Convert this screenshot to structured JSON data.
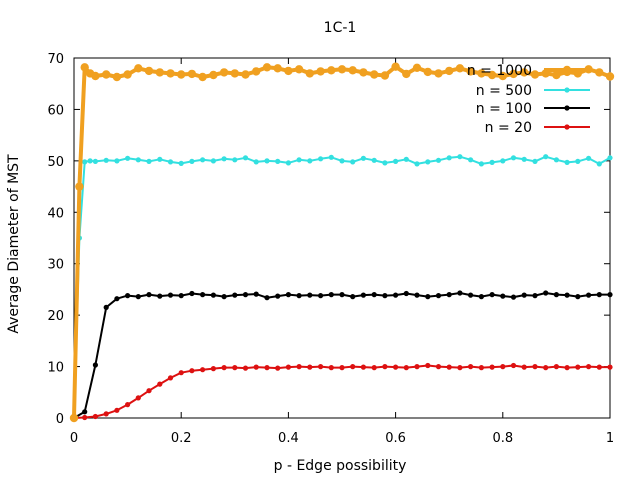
{
  "chart_data": {
    "type": "line",
    "title": "1C-1",
    "xlabel": "p - Edge possibility",
    "ylabel": "Average Diameter of MST",
    "xlim": [
      0,
      1
    ],
    "ylim": [
      0,
      70
    ],
    "x_ticks": [
      0,
      0.2,
      0.4,
      0.6,
      0.8,
      1
    ],
    "x_tick_labels": [
      "0",
      "0.2",
      "0.4",
      "0.6",
      "0.8",
      "1"
    ],
    "y_ticks": [
      0,
      10,
      20,
      30,
      40,
      50,
      60,
      70
    ],
    "y_tick_labels": [
      "0",
      "10",
      "20",
      "30",
      "40",
      "50",
      "60",
      "70"
    ],
    "grid": false,
    "legend_position": "top-right",
    "series": [
      {
        "name": "n = 1000",
        "color": "#f0a020",
        "x": [
          0,
          0.01,
          0.02,
          0.03,
          0.04,
          0.06,
          0.08,
          0.1,
          0.12,
          0.14,
          0.16,
          0.18,
          0.2,
          0.22,
          0.24,
          0.26,
          0.28,
          0.3,
          0.32,
          0.34,
          0.36,
          0.38,
          0.4,
          0.42,
          0.44,
          0.46,
          0.48,
          0.5,
          0.52,
          0.54,
          0.56,
          0.58,
          0.6,
          0.62,
          0.64,
          0.66,
          0.68,
          0.7,
          0.72,
          0.74,
          0.76,
          0.78,
          0.8,
          0.82,
          0.84,
          0.86,
          0.88,
          0.9,
          0.92,
          0.94,
          0.96,
          0.98,
          1.0
        ],
        "y": [
          0,
          45,
          68.2,
          67.0,
          66.5,
          66.8,
          66.3,
          66.8,
          68.0,
          67.5,
          67.2,
          67.0,
          66.8,
          66.9,
          66.3,
          66.7,
          67.2,
          67.0,
          66.8,
          67.4,
          68.2,
          68.0,
          67.5,
          67.8,
          67.0,
          67.4,
          67.6,
          67.8,
          67.6,
          67.2,
          66.8,
          66.6,
          68.3,
          66.9,
          68.1,
          67.3,
          67.0,
          67.5,
          68.0,
          67.4,
          67.0,
          66.7,
          66.5,
          66.9,
          67.2,
          66.8,
          67.0,
          66.7,
          67.3,
          67.0,
          67.8,
          67.2,
          66.4
        ]
      },
      {
        "name": "n = 500",
        "color": "#33e0e0",
        "x": [
          0,
          0.01,
          0.02,
          0.03,
          0.04,
          0.06,
          0.08,
          0.1,
          0.12,
          0.14,
          0.16,
          0.18,
          0.2,
          0.22,
          0.24,
          0.26,
          0.28,
          0.3,
          0.32,
          0.34,
          0.36,
          0.38,
          0.4,
          0.42,
          0.44,
          0.46,
          0.48,
          0.5,
          0.52,
          0.54,
          0.56,
          0.58,
          0.6,
          0.62,
          0.64,
          0.66,
          0.68,
          0.7,
          0.72,
          0.74,
          0.76,
          0.78,
          0.8,
          0.82,
          0.84,
          0.86,
          0.88,
          0.9,
          0.92,
          0.94,
          0.96,
          0.98,
          1.0
        ],
        "y": [
          0,
          35,
          49.8,
          50.0,
          49.9,
          50.1,
          50.0,
          50.5,
          50.2,
          49.9,
          50.3,
          49.8,
          49.5,
          49.9,
          50.2,
          50.0,
          50.4,
          50.2,
          50.6,
          49.8,
          50.0,
          49.9,
          49.6,
          50.2,
          50.0,
          50.4,
          50.7,
          50.0,
          49.8,
          50.5,
          50.1,
          49.6,
          49.9,
          50.3,
          49.4,
          49.8,
          50.1,
          50.6,
          50.8,
          50.2,
          49.4,
          49.7,
          50.0,
          50.6,
          50.3,
          49.9,
          50.8,
          50.2,
          49.7,
          49.9,
          50.5,
          49.4,
          50.6
        ]
      },
      {
        "name": "n = 100",
        "color": "#000000",
        "x": [
          0,
          0.02,
          0.04,
          0.06,
          0.08,
          0.1,
          0.12,
          0.14,
          0.16,
          0.18,
          0.2,
          0.22,
          0.24,
          0.26,
          0.28,
          0.3,
          0.32,
          0.34,
          0.36,
          0.38,
          0.4,
          0.42,
          0.44,
          0.46,
          0.48,
          0.5,
          0.52,
          0.54,
          0.56,
          0.58,
          0.6,
          0.62,
          0.64,
          0.66,
          0.68,
          0.7,
          0.72,
          0.74,
          0.76,
          0.78,
          0.8,
          0.82,
          0.84,
          0.86,
          0.88,
          0.9,
          0.92,
          0.94,
          0.96,
          0.98,
          1.0
        ],
        "y": [
          0,
          1.2,
          10.3,
          21.5,
          23.2,
          23.8,
          23.6,
          24.0,
          23.7,
          23.9,
          23.8,
          24.2,
          24.0,
          23.9,
          23.6,
          23.9,
          24.0,
          24.1,
          23.4,
          23.7,
          24.0,
          23.8,
          23.9,
          23.8,
          24.0,
          24.0,
          23.6,
          23.9,
          24.0,
          23.8,
          23.9,
          24.2,
          23.9,
          23.6,
          23.8,
          24.0,
          24.3,
          23.9,
          23.6,
          24.0,
          23.7,
          23.5,
          23.9,
          23.8,
          24.3,
          24.0,
          23.9,
          23.6,
          23.9,
          24.0,
          24.0
        ]
      },
      {
        "name": "n = 20",
        "color": "#dd1111",
        "x": [
          0,
          0.02,
          0.04,
          0.06,
          0.08,
          0.1,
          0.12,
          0.14,
          0.16,
          0.18,
          0.2,
          0.22,
          0.24,
          0.26,
          0.28,
          0.3,
          0.32,
          0.34,
          0.36,
          0.38,
          0.4,
          0.42,
          0.44,
          0.46,
          0.48,
          0.5,
          0.52,
          0.54,
          0.56,
          0.58,
          0.6,
          0.62,
          0.64,
          0.66,
          0.68,
          0.7,
          0.72,
          0.74,
          0.76,
          0.78,
          0.8,
          0.82,
          0.84,
          0.86,
          0.88,
          0.9,
          0.92,
          0.94,
          0.96,
          0.98,
          1.0
        ],
        "y": [
          0,
          0.1,
          0.3,
          0.8,
          1.5,
          2.6,
          3.9,
          5.3,
          6.6,
          7.8,
          8.8,
          9.2,
          9.4,
          9.6,
          9.8,
          9.8,
          9.7,
          9.9,
          9.8,
          9.7,
          9.9,
          10.0,
          9.9,
          10.0,
          9.8,
          9.8,
          10.0,
          9.9,
          9.8,
          10.0,
          9.9,
          9.8,
          10.0,
          10.2,
          10.0,
          9.9,
          9.8,
          10.0,
          9.8,
          9.9,
          10.0,
          10.2,
          9.9,
          10.0,
          9.8,
          10.0,
          9.8,
          9.9,
          10.0,
          9.9,
          9.9
        ]
      }
    ]
  }
}
